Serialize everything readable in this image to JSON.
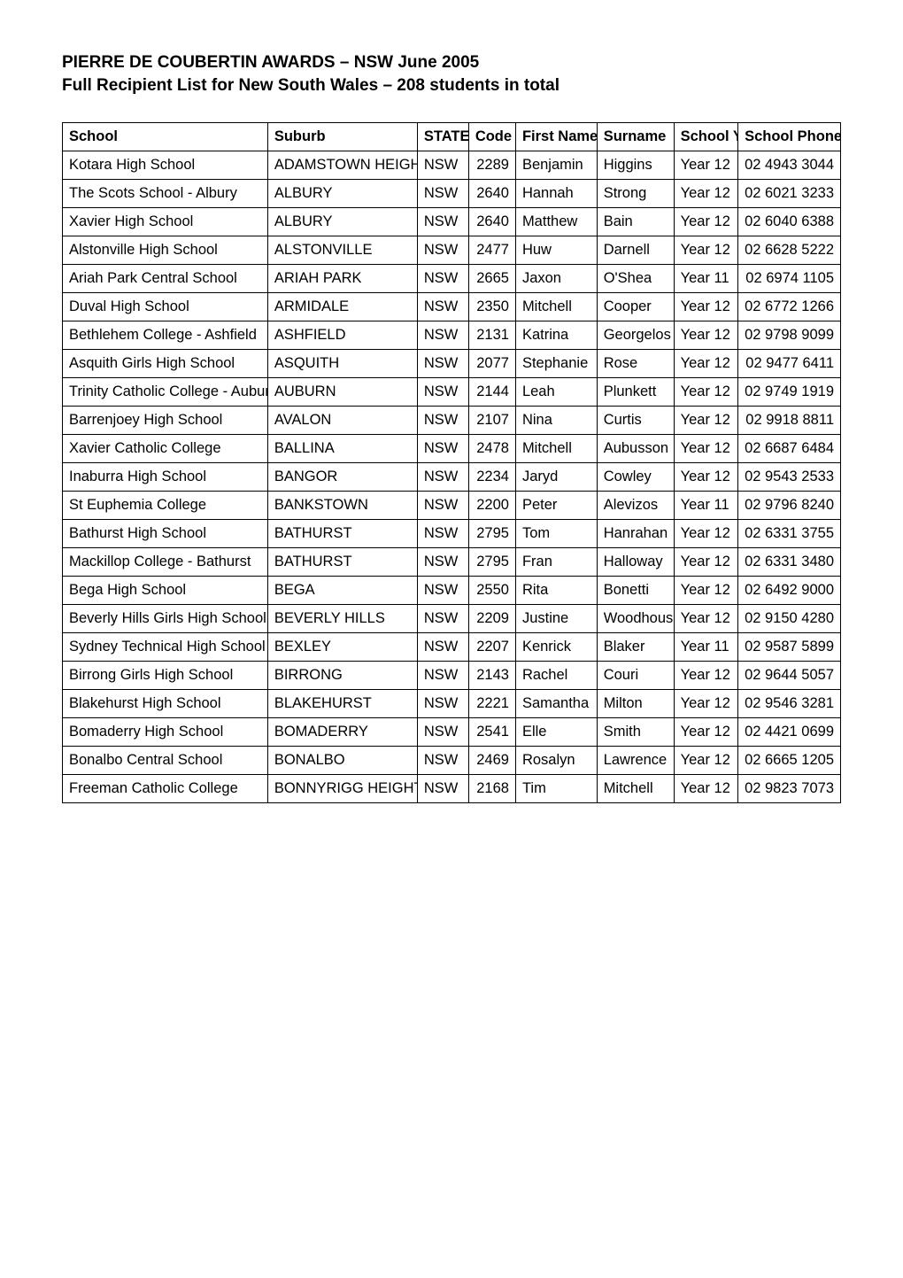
{
  "heading": {
    "title": "PIERRE DE COUBERTIN AWARDS – NSW June 2005",
    "subtitle": "Full Recipient List for New South Wales – 208 students in total"
  },
  "table": {
    "columns": [
      {
        "label": "School",
        "width": "24%",
        "align": "left",
        "header_align": "left"
      },
      {
        "label": "Suburb",
        "width": "17.5%",
        "align": "left",
        "header_align": "left"
      },
      {
        "label": "STATE",
        "width": "6%",
        "align": "left",
        "header_align": "left"
      },
      {
        "label": "Code",
        "width": "5.5%",
        "align": "right",
        "header_align": "left"
      },
      {
        "label": "First Name",
        "width": "9.5%",
        "align": "left",
        "header_align": "left"
      },
      {
        "label": "Surname",
        "width": "9%",
        "align": "left",
        "header_align": "left"
      },
      {
        "label": "School Year",
        "width": "7.5%",
        "align": "left",
        "header_align": "center"
      },
      {
        "label": "School Phone",
        "width": "12%",
        "align": "right",
        "header_align": "left"
      }
    ],
    "rows": [
      [
        "Kotara High School",
        "ADAMSTOWN HEIGHTS",
        "NSW",
        "2289",
        "Benjamin",
        "Higgins",
        "Year 12",
        "02 4943 3044"
      ],
      [
        "The Scots School - Albury",
        "ALBURY",
        "NSW",
        "2640",
        "Hannah",
        "Strong",
        "Year 12",
        "02 6021 3233"
      ],
      [
        "Xavier High School",
        "ALBURY",
        "NSW",
        "2640",
        "Matthew",
        "Bain",
        "Year 12",
        "02 6040 6388"
      ],
      [
        "Alstonville High School",
        "ALSTONVILLE",
        "NSW",
        "2477",
        "Huw",
        "Darnell",
        "Year 12",
        "02 6628 5222"
      ],
      [
        "Ariah Park Central School",
        "ARIAH PARK",
        "NSW",
        "2665",
        "Jaxon",
        "O'Shea",
        "Year 11",
        "02 6974 1105"
      ],
      [
        "Duval High School",
        "ARMIDALE",
        "NSW",
        "2350",
        "Mitchell",
        "Cooper",
        "Year 12",
        "02 6772 1266"
      ],
      [
        "Bethlehem College - Ashfield",
        "ASHFIELD",
        "NSW",
        "2131",
        "Katrina",
        "Georgelos",
        "Year 12",
        "02 9798 9099"
      ],
      [
        "Asquith Girls High School",
        "ASQUITH",
        "NSW",
        "2077",
        "Stephanie",
        "Rose",
        "Year 12",
        "02 9477 6411"
      ],
      [
        "Trinity Catholic College - Auburn",
        "AUBURN",
        "NSW",
        "2144",
        "Leah",
        "Plunkett",
        "Year 12",
        "02 9749 1919"
      ],
      [
        "Barrenjoey High School",
        "AVALON",
        "NSW",
        "2107",
        "Nina",
        "Curtis",
        "Year 12",
        "02 9918 8811"
      ],
      [
        "Xavier Catholic College",
        "BALLINA",
        "NSW",
        "2478",
        "Mitchell",
        "Aubusson",
        "Year 12",
        "02 6687 6484"
      ],
      [
        "Inaburra High School",
        "BANGOR",
        "NSW",
        "2234",
        "Jaryd",
        "Cowley",
        "Year 12",
        "02 9543 2533"
      ],
      [
        "St Euphemia College",
        "BANKSTOWN",
        "NSW",
        "2200",
        "Peter",
        "Alevizos",
        "Year 11",
        "02 9796 8240"
      ],
      [
        "Bathurst High School",
        "BATHURST",
        "NSW",
        "2795",
        "Tom",
        "Hanrahan",
        "Year 12",
        "02 6331 3755"
      ],
      [
        "Mackillop College - Bathurst",
        "BATHURST",
        "NSW",
        "2795",
        "Fran",
        "Halloway",
        "Year 12",
        "02 6331 3480"
      ],
      [
        "Bega High School",
        "BEGA",
        "NSW",
        "2550",
        "Rita",
        "Bonetti",
        "Year 12",
        "02 6492 9000"
      ],
      [
        "Beverly Hills Girls High School",
        "BEVERLY HILLS",
        "NSW",
        "2209",
        "Justine",
        "Woodhouse",
        "Year 12",
        "02 9150 4280"
      ],
      [
        "Sydney Technical High School",
        "BEXLEY",
        "NSW",
        "2207",
        "Kenrick",
        "Blaker",
        "Year 11",
        "02 9587 5899"
      ],
      [
        "Birrong Girls High School",
        "BIRRONG",
        "NSW",
        "2143",
        "Rachel",
        "Couri",
        "Year 12",
        "02 9644 5057"
      ],
      [
        "Blakehurst High School",
        "BLAKEHURST",
        "NSW",
        "2221",
        "Samantha",
        "Milton",
        "Year 12",
        "02 9546 3281"
      ],
      [
        "Bomaderry High School",
        "BOMADERRY",
        "NSW",
        "2541",
        "Elle",
        "Smith",
        "Year 12",
        "02 4421 0699"
      ],
      [
        "Bonalbo Central School",
        "BONALBO",
        "NSW",
        "2469",
        "Rosalyn",
        "Lawrence",
        "Year 12",
        "02 6665 1205"
      ],
      [
        "Freeman Catholic College",
        "BONNYRIGG HEIGHTS",
        "NSW",
        "2168",
        "Tim",
        "Mitchell",
        "Year 12",
        "02 9823 7073"
      ]
    ]
  }
}
